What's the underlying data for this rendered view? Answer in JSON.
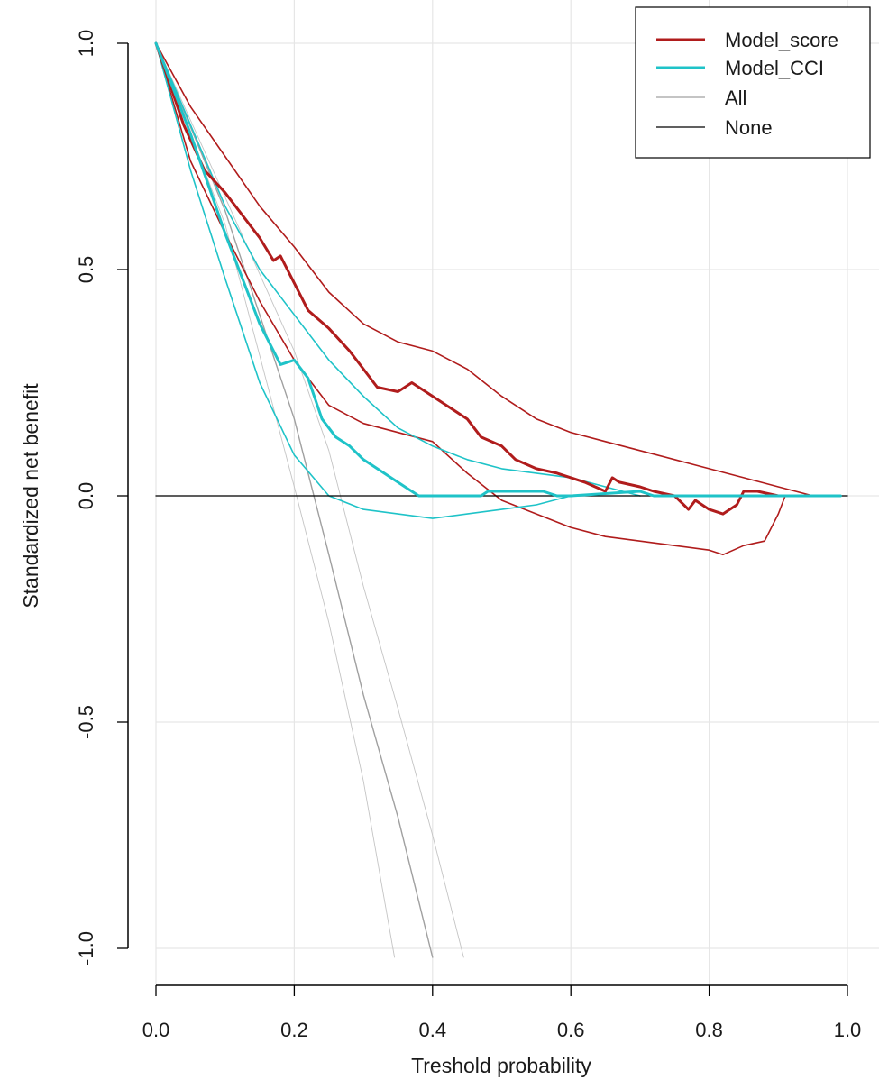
{
  "chart_data": {
    "type": "line",
    "title": "",
    "xlabel": "Treshold probability",
    "ylabel": "Standardized net benefit",
    "xlim": [
      0.0,
      1.0
    ],
    "ylim": [
      -1.0,
      1.0
    ],
    "x_ticks": [
      "0.0",
      "0.2",
      "0.4",
      "0.6",
      "0.8",
      "1.0"
    ],
    "y_ticks": [
      "-1.0",
      "-0.5",
      "0.0",
      "0.5",
      "1.0"
    ],
    "grid": true,
    "legend_position": "top-right",
    "legend": [
      {
        "label": "Model_score",
        "color": "#b01c1c"
      },
      {
        "label": "Model_CCI",
        "color": "#1fc3c8"
      },
      {
        "label": "All",
        "color": "#a0a0a0"
      },
      {
        "label": "None",
        "color": "#000000"
      }
    ],
    "series": [
      {
        "name": "Model_score",
        "color": "#b01c1c",
        "x": [
          0.0,
          0.04,
          0.07,
          0.1,
          0.12,
          0.15,
          0.17,
          0.18,
          0.2,
          0.22,
          0.25,
          0.28,
          0.3,
          0.32,
          0.35,
          0.37,
          0.39,
          0.42,
          0.45,
          0.47,
          0.5,
          0.52,
          0.55,
          0.58,
          0.6,
          0.62,
          0.65,
          0.66,
          0.67,
          0.7,
          0.72,
          0.75,
          0.77,
          0.78,
          0.8,
          0.82,
          0.84,
          0.85,
          0.87,
          0.9
        ],
        "y": [
          1.0,
          0.82,
          0.72,
          0.67,
          0.63,
          0.57,
          0.52,
          0.53,
          0.47,
          0.41,
          0.37,
          0.32,
          0.28,
          0.24,
          0.23,
          0.25,
          0.23,
          0.2,
          0.17,
          0.13,
          0.11,
          0.08,
          0.06,
          0.05,
          0.04,
          0.03,
          0.01,
          0.04,
          0.03,
          0.02,
          0.01,
          0.0,
          -0.03,
          -0.01,
          -0.03,
          -0.04,
          -0.02,
          0.01,
          0.01,
          0.0
        ]
      },
      {
        "name": "Model_score upper CI",
        "color": "#b01c1c",
        "x": [
          0.0,
          0.05,
          0.1,
          0.15,
          0.2,
          0.25,
          0.3,
          0.35,
          0.4,
          0.45,
          0.5,
          0.55,
          0.6,
          0.65,
          0.7,
          0.75,
          0.8,
          0.85,
          0.9,
          0.95
        ],
        "y": [
          1.0,
          0.86,
          0.75,
          0.64,
          0.55,
          0.45,
          0.38,
          0.34,
          0.32,
          0.28,
          0.22,
          0.17,
          0.14,
          0.12,
          0.1,
          0.08,
          0.06,
          0.04,
          0.02,
          0.0
        ]
      },
      {
        "name": "Model_score lower CI",
        "color": "#b01c1c",
        "x": [
          0.0,
          0.05,
          0.1,
          0.15,
          0.2,
          0.25,
          0.3,
          0.35,
          0.4,
          0.45,
          0.5,
          0.55,
          0.6,
          0.65,
          0.7,
          0.75,
          0.8,
          0.82,
          0.85,
          0.88,
          0.9,
          0.91
        ],
        "y": [
          1.0,
          0.74,
          0.58,
          0.43,
          0.3,
          0.2,
          0.16,
          0.14,
          0.12,
          0.05,
          -0.01,
          -0.04,
          -0.07,
          -0.09,
          -0.1,
          -0.11,
          -0.12,
          -0.13,
          -0.11,
          -0.1,
          -0.04,
          0.0
        ]
      },
      {
        "name": "Model_CCI",
        "color": "#1fc3c8",
        "x": [
          0.0,
          0.05,
          0.1,
          0.15,
          0.18,
          0.2,
          0.22,
          0.24,
          0.26,
          0.28,
          0.3,
          0.33,
          0.36,
          0.38,
          0.4,
          0.42,
          0.44,
          0.47,
          0.48,
          0.5,
          0.56,
          0.58,
          0.6,
          0.7,
          0.72,
          0.75,
          0.8,
          0.9,
          0.99
        ],
        "y": [
          1.0,
          0.8,
          0.58,
          0.38,
          0.29,
          0.3,
          0.26,
          0.17,
          0.13,
          0.11,
          0.08,
          0.05,
          0.02,
          0.0,
          0.0,
          0.0,
          0.0,
          0.0,
          0.01,
          0.01,
          0.01,
          0.0,
          0.0,
          0.01,
          0.0,
          0.0,
          0.0,
          0.0,
          0.0
        ]
      },
      {
        "name": "Model_CCI upper CI",
        "color": "#1fc3c8",
        "x": [
          0.0,
          0.05,
          0.1,
          0.15,
          0.2,
          0.25,
          0.3,
          0.35,
          0.4,
          0.45,
          0.5,
          0.55,
          0.6,
          0.65,
          0.7
        ],
        "y": [
          1.0,
          0.82,
          0.64,
          0.5,
          0.4,
          0.3,
          0.22,
          0.15,
          0.11,
          0.08,
          0.06,
          0.05,
          0.04,
          0.02,
          0.0
        ]
      },
      {
        "name": "Model_CCI lower CI",
        "color": "#1fc3c8",
        "x": [
          0.0,
          0.05,
          0.1,
          0.15,
          0.2,
          0.25,
          0.3,
          0.35,
          0.4,
          0.45,
          0.5,
          0.55,
          0.6
        ],
        "y": [
          1.0,
          0.72,
          0.48,
          0.25,
          0.09,
          0.0,
          -0.03,
          -0.04,
          -0.05,
          -0.04,
          -0.03,
          -0.02,
          0.0
        ]
      },
      {
        "name": "All",
        "color": "#a0a0a0",
        "x": [
          0.0,
          0.1,
          0.2,
          0.25,
          0.3,
          0.35,
          0.4
        ],
        "y": [
          1.0,
          0.63,
          0.17,
          -0.13,
          -0.44,
          -0.71,
          -1.02
        ]
      },
      {
        "name": "All lower CI",
        "color": "#c4c4c4",
        "x": [
          0.0,
          0.1,
          0.2,
          0.25,
          0.3,
          0.345
        ],
        "y": [
          1.0,
          0.6,
          0.02,
          -0.28,
          -0.63,
          -1.02
        ]
      },
      {
        "name": "All upper CI",
        "color": "#c4c4c4",
        "x": [
          0.0,
          0.1,
          0.2,
          0.25,
          0.3,
          0.35,
          0.4,
          0.445
        ],
        "y": [
          1.0,
          0.66,
          0.32,
          0.1,
          -0.2,
          -0.47,
          -0.75,
          -1.02
        ]
      },
      {
        "name": "None",
        "color": "#000000",
        "x": [
          0.0,
          1.0
        ],
        "y": [
          0.0,
          0.0
        ]
      }
    ]
  }
}
